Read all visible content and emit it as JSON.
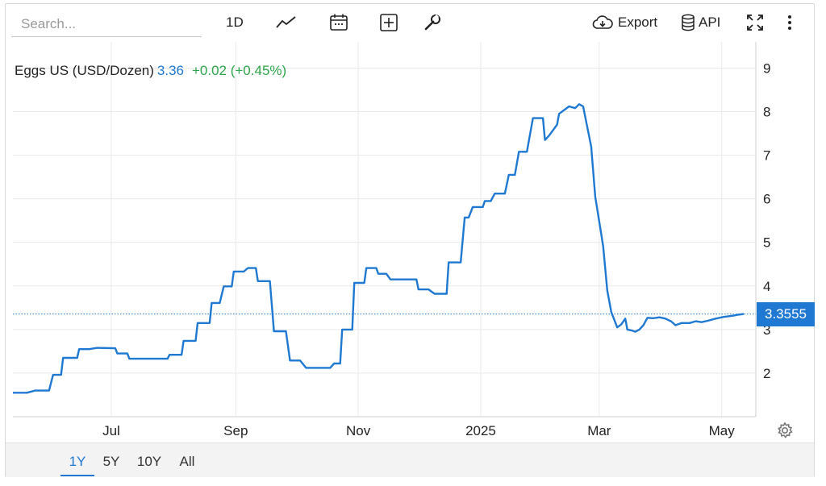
{
  "toolbar": {
    "search_placeholder": "Search...",
    "interval_label": "1D",
    "export_label": "Export",
    "api_label": "API"
  },
  "legend": {
    "name": "Eggs US (USD/Dozen)",
    "last": "3.36",
    "change": "+0.02 (+0.45%)"
  },
  "price_tag": "3.3555",
  "range_buttons": [
    {
      "label": "1Y",
      "active": true
    },
    {
      "label": "5Y",
      "active": false
    },
    {
      "label": "10Y",
      "active": false
    },
    {
      "label": "All",
      "active": false
    }
  ],
  "colors": {
    "line": "#1f78d1",
    "up": "#2ca44a",
    "grid": "#e9e9e9"
  },
  "chart_data": {
    "type": "line",
    "title": "",
    "xlabel": "",
    "ylabel": "",
    "x_tick_labels": [
      "Jul",
      "Sep",
      "Nov",
      "2025",
      "Mar",
      "May"
    ],
    "y_tick_labels": [
      "2",
      "3",
      "4",
      "5",
      "6",
      "7",
      "8",
      "9"
    ],
    "ylim": [
      1,
      9.6
    ],
    "grid": true,
    "last_value": 3.3555,
    "series": [
      {
        "name": "Eggs US (USD/Dozen)",
        "color": "#1f78d1",
        "points": [
          [
            "2024-05-13",
            1.55
          ],
          [
            "2024-05-20",
            1.55
          ],
          [
            "2024-05-24",
            1.6
          ],
          [
            "2024-05-31",
            1.6
          ],
          [
            "2024-06-02",
            1.96
          ],
          [
            "2024-06-06",
            1.96
          ],
          [
            "2024-06-07",
            2.35
          ],
          [
            "2024-06-14",
            2.35
          ],
          [
            "2024-06-15",
            2.55
          ],
          [
            "2024-06-20",
            2.55
          ],
          [
            "2024-06-24",
            2.58
          ],
          [
            "2024-07-03",
            2.57
          ],
          [
            "2024-07-04",
            2.45
          ],
          [
            "2024-07-09",
            2.45
          ],
          [
            "2024-07-10",
            2.33
          ],
          [
            "2024-07-29",
            2.33
          ],
          [
            "2024-07-30",
            2.42
          ],
          [
            "2024-08-05",
            2.42
          ],
          [
            "2024-08-06",
            2.74
          ],
          [
            "2024-08-12",
            2.74
          ],
          [
            "2024-08-13",
            3.15
          ],
          [
            "2024-08-19",
            3.15
          ],
          [
            "2024-08-20",
            3.61
          ],
          [
            "2024-08-24",
            3.61
          ],
          [
            "2024-08-26",
            3.99
          ],
          [
            "2024-08-30",
            3.99
          ],
          [
            "2024-08-31",
            4.33
          ],
          [
            "2024-09-05",
            4.33
          ],
          [
            "2024-09-07",
            4.41
          ],
          [
            "2024-09-11",
            4.41
          ],
          [
            "2024-09-12",
            4.11
          ],
          [
            "2024-09-18",
            4.11
          ],
          [
            "2024-09-20",
            2.96
          ],
          [
            "2024-09-26",
            2.96
          ],
          [
            "2024-09-28",
            2.29
          ],
          [
            "2024-10-03",
            2.29
          ],
          [
            "2024-10-06",
            2.12
          ],
          [
            "2024-10-18",
            2.12
          ],
          [
            "2024-10-20",
            2.22
          ],
          [
            "2024-10-23",
            2.22
          ],
          [
            "2024-10-24",
            3.0
          ],
          [
            "2024-10-29",
            3.0
          ],
          [
            "2024-10-30",
            4.07
          ],
          [
            "2024-11-04",
            4.07
          ],
          [
            "2024-11-05",
            4.41
          ],
          [
            "2024-11-10",
            4.41
          ],
          [
            "2024-11-11",
            4.28
          ],
          [
            "2024-11-15",
            4.28
          ],
          [
            "2024-11-17",
            4.15
          ],
          [
            "2024-11-30",
            4.15
          ],
          [
            "2024-12-01",
            3.92
          ],
          [
            "2024-12-06",
            3.92
          ],
          [
            "2024-12-09",
            3.82
          ],
          [
            "2024-12-15",
            3.82
          ],
          [
            "2024-12-16",
            4.54
          ],
          [
            "2024-12-22",
            4.54
          ],
          [
            "2024-12-24",
            5.57
          ],
          [
            "2024-12-26",
            5.57
          ],
          [
            "2024-12-28",
            5.81
          ],
          [
            "2025-01-02",
            5.81
          ],
          [
            "2025-01-03",
            5.95
          ],
          [
            "2025-01-06",
            5.95
          ],
          [
            "2025-01-08",
            6.12
          ],
          [
            "2025-01-13",
            6.12
          ],
          [
            "2025-01-15",
            6.55
          ],
          [
            "2025-01-18",
            6.55
          ],
          [
            "2025-01-20",
            7.08
          ],
          [
            "2025-01-24",
            7.08
          ],
          [
            "2025-01-27",
            7.85
          ],
          [
            "2025-02-01",
            7.85
          ],
          [
            "2025-02-02",
            7.35
          ],
          [
            "2025-02-04",
            7.45
          ],
          [
            "2025-02-08",
            7.7
          ],
          [
            "2025-02-09",
            7.95
          ],
          [
            "2025-02-14",
            8.12
          ],
          [
            "2025-02-17",
            8.08
          ],
          [
            "2025-02-19",
            8.17
          ],
          [
            "2025-02-21",
            8.12
          ],
          [
            "2025-02-25",
            7.2
          ],
          [
            "2025-02-27",
            6.05
          ],
          [
            "2025-03-02",
            5.2
          ],
          [
            "2025-03-03",
            4.9
          ],
          [
            "2025-03-05",
            3.9
          ],
          [
            "2025-03-07",
            3.4
          ],
          [
            "2025-03-10",
            3.05
          ],
          [
            "2025-03-12",
            3.12
          ],
          [
            "2025-03-14",
            3.25
          ],
          [
            "2025-03-15",
            3.0
          ],
          [
            "2025-03-17",
            2.98
          ],
          [
            "2025-03-19",
            2.95
          ],
          [
            "2025-03-21",
            3.0
          ],
          [
            "2025-03-23",
            3.1
          ],
          [
            "2025-03-25",
            3.27
          ],
          [
            "2025-03-28",
            3.26
          ],
          [
            "2025-03-31",
            3.28
          ],
          [
            "2025-04-03",
            3.25
          ],
          [
            "2025-04-06",
            3.18
          ],
          [
            "2025-04-08",
            3.1
          ],
          [
            "2025-04-11",
            3.15
          ],
          [
            "2025-04-15",
            3.15
          ],
          [
            "2025-04-18",
            3.19
          ],
          [
            "2025-04-21",
            3.17
          ],
          [
            "2025-04-24",
            3.2
          ],
          [
            "2025-04-28",
            3.25
          ],
          [
            "2025-05-02",
            3.29
          ],
          [
            "2025-05-07",
            3.32
          ],
          [
            "2025-05-09",
            3.34
          ],
          [
            "2025-05-12",
            3.3555
          ]
        ]
      }
    ]
  }
}
